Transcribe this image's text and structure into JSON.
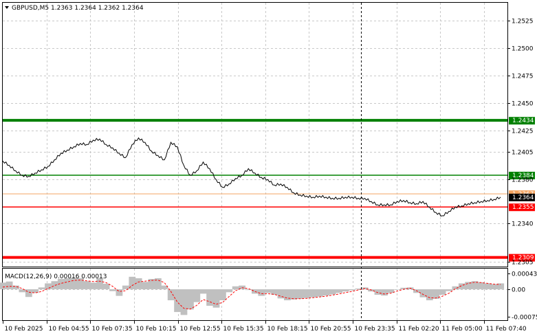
{
  "symbol_header": "GBPUSD,M5  1.2363 1.2364 1.2362 1.2364",
  "macd_header": "MACD(12,26,9) 0.00016 0.00013",
  "colors": {
    "background": "#ffffff",
    "grid": "#c8c8c8",
    "price_line": "#000000",
    "green_level": "#008000",
    "red_level": "#ff0000",
    "orange_level": "#f4a460",
    "histogram": "#c0c0c0",
    "signal": "#ff0000"
  },
  "price_axis": {
    "ticks": [
      "1.2525",
      "1.2500",
      "1.2475",
      "1.2450",
      "1.2425",
      "1.2405",
      "1.2380",
      "1.2340",
      "1.2305"
    ]
  },
  "levels": [
    {
      "price": "1.2434",
      "color": "#008000",
      "style": "thick"
    },
    {
      "price": "1.2384",
      "color": "#008000",
      "style": "normal"
    },
    {
      "price": "1.2367",
      "color": "#f4a460",
      "style": "thin"
    },
    {
      "price": "1.2364",
      "color": "#000000",
      "style": "current"
    },
    {
      "price": "1.2355",
      "color": "#ff0000",
      "style": "normal"
    },
    {
      "price": "1.2309",
      "color": "#ff0000",
      "style": "thick"
    }
  ],
  "macd_axis": {
    "ticks": [
      "0.00043",
      "0.00",
      "-0.00075"
    ]
  },
  "time_axis": {
    "ticks": [
      "10 Feb 2025",
      "10 Feb 04:55",
      "10 Feb 07:35",
      "10 Feb 10:15",
      "10 Feb 12:55",
      "10 Feb 15:35",
      "10 Feb 18:15",
      "10 Feb 20:55",
      "10 Feb 23:35",
      "11 Feb 02:20",
      "11 Feb 05:00",
      "11 Feb 07:40"
    ]
  },
  "chart_data": {
    "type": "line",
    "price_series": [
      1.2397,
      1.2393,
      1.2388,
      1.2384,
      1.2383,
      1.2386,
      1.2389,
      1.2392,
      1.2398,
      1.2404,
      1.2407,
      1.241,
      1.2413,
      1.2412,
      1.2416,
      1.2417,
      1.2412,
      1.2409,
      1.2404,
      1.24,
      1.2412,
      1.2418,
      1.2414,
      1.2406,
      1.2402,
      1.2398,
      1.2414,
      1.241,
      1.2393,
      1.2384,
      1.2388,
      1.2396,
      1.239,
      1.238,
      1.2373,
      1.2376,
      1.2381,
      1.2384,
      1.239,
      1.2386,
      1.2382,
      1.238,
      1.2375,
      1.2376,
      1.2373,
      1.2368,
      1.2366,
      1.2365,
      1.2364,
      1.2365,
      1.2364,
      1.2363,
      1.2363,
      1.2364,
      1.2364,
      1.2363,
      1.2363,
      1.236,
      1.2357,
      1.2357,
      1.2357,
      1.236,
      1.2361,
      1.2359,
      1.2358,
      1.236,
      1.2355,
      1.235,
      1.2347,
      1.2351,
      1.2355,
      1.2356,
      1.2358,
      1.2359,
      1.236,
      1.2361,
      1.2362,
      1.2364
    ],
    "macd_histogram": [
      0.00018,
      0.00021,
      0.0001,
      -8e-05,
      -0.00021,
      -0.0001,
      5e-05,
      0.00016,
      0.00022,
      0.00028,
      0.0003,
      0.00032,
      0.0003,
      0.00022,
      0.00018,
      0.0003,
      0.00015,
      -5e-05,
      -0.00018,
      0.0001,
      0.00034,
      0.0003,
      0.0002,
      0.00028,
      0.0003,
      0.0001,
      -0.0003,
      -0.00062,
      -0.0007,
      -0.00055,
      -0.00035,
      -0.00012,
      -0.00045,
      -0.0005,
      -0.0003,
      -8e-05,
      8e-05,
      0.0001,
      -2e-05,
      -0.00012,
      -0.00018,
      -0.0001,
      -0.00015,
      -0.00025,
      -0.0003,
      -0.00028,
      -0.00026,
      -0.00024,
      -0.00022,
      -0.0002,
      -0.00017,
      -0.00014,
      -0.0001,
      -6e-05,
      -3e-05,
      2e-05,
      5e-05,
      -6e-05,
      -0.00015,
      -0.00017,
      -0.0001,
      0.0,
      4e-05,
      5e-05,
      -0.0001,
      -0.00022,
      -0.0003,
      -0.00026,
      -0.00015,
      -5e-05,
      8e-05,
      0.00016,
      0.0002,
      0.00022,
      0.00019,
      0.00016,
      0.00014,
      0.00016
    ],
    "macd_signal": [
      6e-05,
      8e-05,
      8e-05,
      2e-05,
      -8e-05,
      -0.0001,
      -6e-05,
      2e-05,
      0.0001,
      0.00016,
      0.0002,
      0.00024,
      0.00025,
      0.00023,
      0.00021,
      0.00022,
      0.00018,
      8e-05,
      -6e-05,
      -4e-05,
      0.0001,
      0.0002,
      0.00022,
      0.00024,
      0.00025,
      0.00018,
      -6e-05,
      -0.00035,
      -0.00052,
      -0.00054,
      -0.00044,
      -0.00028,
      -0.00034,
      -0.00041,
      -0.00036,
      -0.0002,
      -4e-05,
      4e-05,
      2e-05,
      -6e-05,
      -0.00012,
      -0.00012,
      -0.00014,
      -0.00019,
      -0.00024,
      -0.00026,
      -0.00026,
      -0.00025,
      -0.00023,
      -0.00021,
      -0.00019,
      -0.00016,
      -0.00013,
      -9e-05,
      -6e-05,
      -2e-05,
      2e-05,
      -2e-05,
      -9e-05,
      -0.00013,
      -0.00011,
      -5e-05,
      0.0,
      3e-05,
      -4e-05,
      -0.00014,
      -0.00023,
      -0.00024,
      -0.00019,
      -0.00011,
      1e-05,
      0.0001,
      0.00016,
      0.00019,
      0.00018,
      0.00016,
      0.00014,
      0.00013
    ]
  }
}
